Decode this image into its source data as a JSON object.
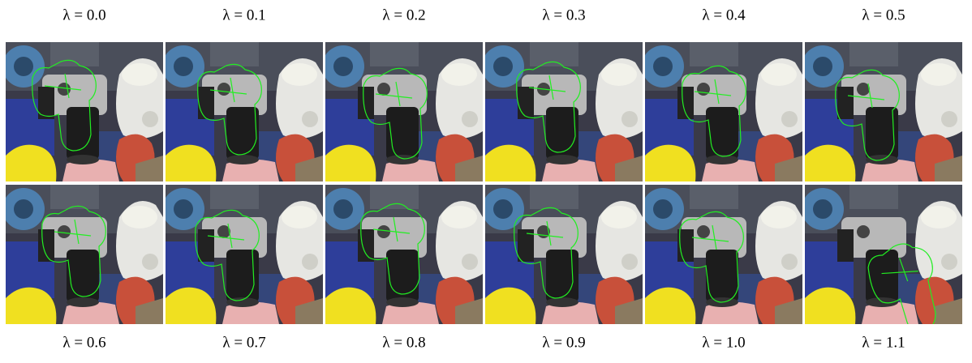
{
  "top_labels": [
    "λ = 0.0",
    "λ = 0.1",
    "λ = 0.2",
    "λ = 0.3",
    "λ = 0.4",
    "λ = 0.5"
  ],
  "bottom_labels": [
    "λ = 0.6",
    "λ = 0.7",
    "λ = 0.8",
    "λ = 0.9",
    "λ = 1.0",
    "λ = 1.1"
  ]
}
